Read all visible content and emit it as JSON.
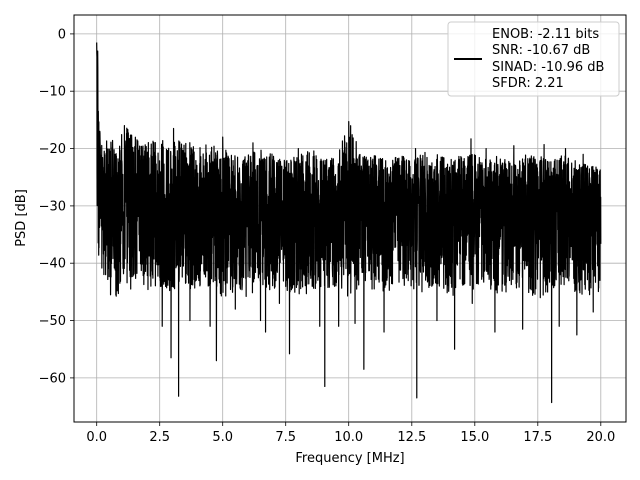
{
  "chart_data": {
    "type": "line",
    "title": "",
    "xlabel": "Frequency [MHz]",
    "ylabel": "PSD [dB]",
    "xlim": [
      -0.9,
      21.0
    ],
    "ylim": [
      -67.7,
      3.3
    ],
    "xticks": [
      0.0,
      2.5,
      5.0,
      7.5,
      10.0,
      12.5,
      15.0,
      17.5,
      20.0
    ],
    "xtick_labels": [
      "0.0",
      "2.5",
      "5.0",
      "7.5",
      "10.0",
      "12.5",
      "15.0",
      "17.5",
      "20.0"
    ],
    "yticks": [
      0,
      -10,
      -20,
      -30,
      -40,
      -50,
      -60
    ],
    "ytick_labels": [
      "0",
      "−10",
      "−20",
      "−30",
      "−40",
      "−50",
      "−60"
    ],
    "grid": true,
    "legend": {
      "placement": "top-right",
      "entries": [
        "ENOB: -2.11 bits",
        "SNR: -10.67 dB",
        "SINAD: -10.96 dB",
        "SFDR: 2.21"
      ]
    },
    "series": [
      {
        "color": "#000000",
        "x": [
          0.0,
          0.02,
          0.04,
          0.06,
          0.08,
          0.1,
          0.12,
          0.15,
          0.2,
          0.25,
          0.3,
          0.4,
          0.5,
          0.6,
          0.8,
          1.0,
          1.2,
          1.5,
          2.0,
          2.5,
          3.0,
          3.5,
          4.0,
          4.5,
          5.0,
          5.5,
          6.0,
          6.5,
          7.0,
          7.5,
          8.0,
          8.5,
          9.0,
          9.5,
          10.0,
          10.5,
          11.0,
          11.5,
          12.0,
          12.5,
          13.0,
          13.5,
          14.0,
          14.5,
          15.0,
          15.5,
          16.0,
          16.5,
          17.0,
          17.5,
          18.0,
          18.5,
          19.0,
          19.5,
          20.0
        ],
        "y": [
          0,
          -8,
          -3,
          -14,
          -12,
          -20,
          -18,
          -24,
          -22,
          -27,
          -26,
          -28,
          -29,
          -30,
          -30,
          -30,
          -30,
          -30,
          -30,
          -30,
          -30,
          -30,
          -30,
          -30,
          -30,
          -30,
          -30,
          -30,
          -30,
          -30,
          -30,
          -30,
          -30,
          -30,
          -30,
          -30,
          -30,
          -30,
          -30,
          -30,
          -30,
          -30,
          -30,
          -30,
          -30,
          -30,
          -30,
          -30,
          -30,
          -30,
          -30,
          -30,
          -30,
          -30,
          -30
        ],
        "upper_envelope": [
          0,
          -8,
          -3,
          -14,
          -12,
          -18,
          -15,
          -19,
          -18,
          -20,
          -19,
          -18,
          -17,
          -18,
          -18,
          -17,
          -16,
          -17,
          -19,
          -18,
          -19,
          -18,
          -20,
          -19,
          -20,
          -21,
          -21,
          -20,
          -21,
          -22,
          -21,
          -20,
          -21,
          -22,
          -15,
          -21,
          -21,
          -22,
          -21,
          -22,
          -20,
          -21,
          -22,
          -21,
          -21,
          -22,
          -21,
          -22,
          -21,
          -21,
          -22,
          -21,
          -22,
          -23,
          -23
        ],
        "lower_envelope": [
          -41,
          -36,
          -41,
          -38,
          -40,
          -40,
          -40,
          -42,
          -41,
          -43,
          -42,
          -44,
          -44,
          -45,
          -46,
          -45,
          -44,
          -43,
          -45,
          -44,
          -45,
          -44,
          -45,
          -44,
          -46,
          -45,
          -46,
          -44,
          -45,
          -45,
          -46,
          -45,
          -44,
          -45,
          -46,
          -44,
          -45,
          -45,
          -44,
          -45,
          -45,
          -44,
          -46,
          -45,
          -45,
          -44,
          -46,
          -44,
          -45,
          -46,
          -45,
          -44,
          -45,
          -46,
          -45
        ],
        "spikes": [
          [
            0.55,
            -45.5
          ],
          [
            1.35,
            -44.5
          ],
          [
            2.6,
            -51
          ],
          [
            2.95,
            -56.5
          ],
          [
            3.25,
            -63.2
          ],
          [
            3.7,
            -50
          ],
          [
            4.5,
            -51
          ],
          [
            4.75,
            -57
          ],
          [
            5.5,
            -48
          ],
          [
            6.5,
            -50
          ],
          [
            6.7,
            -52
          ],
          [
            7.25,
            -47
          ],
          [
            7.65,
            -55.8
          ],
          [
            8.85,
            -51
          ],
          [
            9.05,
            -61.5
          ],
          [
            9.6,
            -51
          ],
          [
            10.25,
            -50.5
          ],
          [
            10.6,
            -58.5
          ],
          [
            11.4,
            -52
          ],
          [
            12.7,
            -63.5
          ],
          [
            13.5,
            -50
          ],
          [
            14.2,
            -55
          ],
          [
            14.9,
            -47
          ],
          [
            15.8,
            -52
          ],
          [
            16.9,
            -51.5
          ],
          [
            17.6,
            -46
          ],
          [
            18.05,
            -64.3
          ],
          [
            18.35,
            -51
          ],
          [
            19.05,
            -52.5
          ],
          [
            19.7,
            -48.5
          ]
        ],
        "peaks": [
          [
            0.0,
            -1.5
          ],
          [
            1.1,
            -16
          ],
          [
            3.05,
            -16.5
          ],
          [
            5.0,
            -18
          ],
          [
            6.2,
            -19
          ],
          [
            8.0,
            -20
          ],
          [
            10.0,
            -15.3
          ],
          [
            12.65,
            -20
          ],
          [
            14.85,
            -18.3
          ],
          [
            15.45,
            -20
          ],
          [
            16.55,
            -19.5
          ],
          [
            17.75,
            -19.3
          ],
          [
            18.6,
            -20
          ],
          [
            19.3,
            -21
          ]
        ]
      }
    ]
  }
}
